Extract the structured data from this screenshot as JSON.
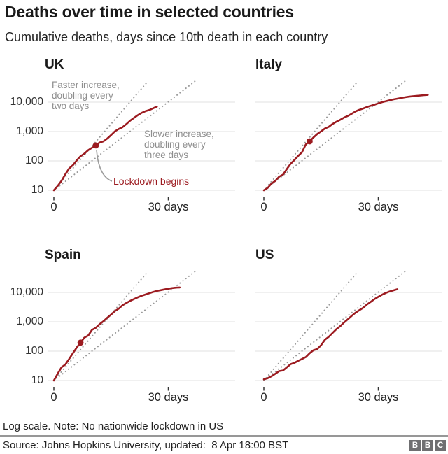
{
  "header": {
    "title": "Deaths over time in selected countries",
    "subtitle": "Cumulative deaths, days since 10th death in each country"
  },
  "annotations": {
    "faster": "Faster increase,\ndoubling every\ntwo days",
    "slower": "Slower increase,\ndoubling every\nthree days",
    "lockdown": "Lockdown begins"
  },
  "chart_data": {
    "type": "line",
    "y_scale": "log",
    "x_label_unit": "days since 10th death",
    "x_ticks": [
      "0",
      "30 days"
    ],
    "x_tick_days": [
      0,
      30
    ],
    "y_ticks": [
      "10,000",
      "1,000",
      "100",
      "10"
    ],
    "y_tick_values": [
      10000,
      1000,
      100,
      10
    ],
    "y_range": [
      10,
      46000
    ],
    "grid": true,
    "guides": [
      {
        "label": "doubling every two days",
        "days_per_double": 2,
        "start_value": 10
      },
      {
        "label": "doubling every three days",
        "days_per_double": 3,
        "start_value": 10
      }
    ],
    "series": [
      {
        "name": "UK",
        "show_y_labels": true,
        "lockdown_day": 11,
        "lockdown_annotated": true,
        "values": [
          10,
          14,
          21,
          35,
          55,
          72,
          104,
          144,
          177,
          233,
          281,
          335,
          422,
          465,
          578,
          759,
          1019,
          1228,
          1408,
          1789,
          2352,
          2921,
          3605,
          4313,
          4934,
          5373,
          6159,
          7097
        ]
      },
      {
        "name": "Italy",
        "show_y_labels": false,
        "lockdown_day": 12,
        "lockdown_annotated": false,
        "values": [
          10,
          12,
          17,
          21,
          29,
          34,
          52,
          79,
          107,
          148,
          197,
          366,
          463,
          631,
          827,
          1016,
          1266,
          1441,
          1809,
          2158,
          2503,
          2978,
          3405,
          4032,
          4825,
          5476,
          6077,
          6820,
          7503,
          8215,
          9134,
          10023,
          10779,
          11591,
          12428,
          13155,
          13915,
          14681,
          15362,
          15887,
          16270,
          16820,
          17300,
          17669
        ]
      },
      {
        "name": "Spain",
        "show_y_labels": true,
        "lockdown_day": 7,
        "lockdown_annotated": false,
        "values": [
          10,
          17,
          28,
          35,
          54,
          86,
          133,
          195,
          289,
          342,
          533,
          623,
          830,
          1043,
          1375,
          1772,
          2311,
          2808,
          3647,
          4365,
          5138,
          5982,
          6803,
          7716,
          8464,
          9387,
          10348,
          11198,
          11947,
          12641,
          13341,
          14045,
          14555,
          14792
        ]
      },
      {
        "name": "US",
        "show_y_labels": false,
        "lockdown_day": null,
        "lockdown_annotated": false,
        "values": [
          11,
          12,
          14,
          17,
          21,
          22,
          28,
          36,
          40,
          47,
          54,
          63,
          85,
          108,
          118,
          160,
          244,
          307,
          417,
          557,
          706,
          942,
          1209,
          1581,
          2026,
          2467,
          2978,
          3873,
          4757,
          5926,
          7087,
          8407,
          9619,
          10783,
          11793,
          12900
        ]
      }
    ]
  },
  "footer": {
    "note": "Log scale. Note: No nationwide lockdown in US",
    "source": "Source: Johns Hopkins University, updated:  8 Apr 18:00 BST",
    "logo": [
      "B",
      "B",
      "C"
    ]
  },
  "colors": {
    "line_red": "#9c1b20",
    "guide_gray": "#9a9a9a",
    "grid_gray": "#e0e0e0",
    "annotation_gray": "#8e8e8e",
    "tick_gray": "#333333",
    "divider_gray": "#979797",
    "logo_gray": "#6f6f71"
  }
}
